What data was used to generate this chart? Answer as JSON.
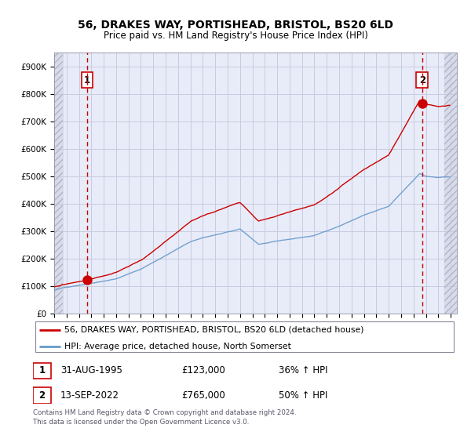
{
  "title1": "56, DRAKES WAY, PORTISHEAD, BRISTOL, BS20 6LD",
  "title2": "Price paid vs. HM Land Registry's House Price Index (HPI)",
  "ylim": [
    0,
    950000
  ],
  "yticks": [
    0,
    100000,
    200000,
    300000,
    400000,
    500000,
    600000,
    700000,
    800000,
    900000
  ],
  "ytick_labels": [
    "£0",
    "£100K",
    "£200K",
    "£300K",
    "£400K",
    "£500K",
    "£600K",
    "£700K",
    "£800K",
    "£900K"
  ],
  "xlim_start": 1993.0,
  "xlim_end": 2025.5,
  "price_paid_dates": [
    1995.664,
    2022.703
  ],
  "price_paid_values": [
    123000,
    765000
  ],
  "annotation1_label": "1",
  "annotation2_label": "2",
  "sale_color": "#cc0000",
  "hpi_color": "#6699cc",
  "legend_line1": "56, DRAKES WAY, PORTISHEAD, BRISTOL, BS20 6LD (detached house)",
  "legend_line2": "HPI: Average price, detached house, North Somerset",
  "info1_num": "1",
  "info1_date": "31-AUG-1995",
  "info1_price": "£123,000",
  "info1_hpi": "36% ↑ HPI",
  "info2_num": "2",
  "info2_date": "13-SEP-2022",
  "info2_price": "£765,000",
  "info2_hpi": "50% ↑ HPI",
  "footnote": "Contains HM Land Registry data © Crown copyright and database right 2024.\nThis data is licensed under the Open Government Licence v3.0.",
  "grid_color": "#c8cce0",
  "plot_bg": "#e8ecf8",
  "hatch_bg": "#d8dcea"
}
